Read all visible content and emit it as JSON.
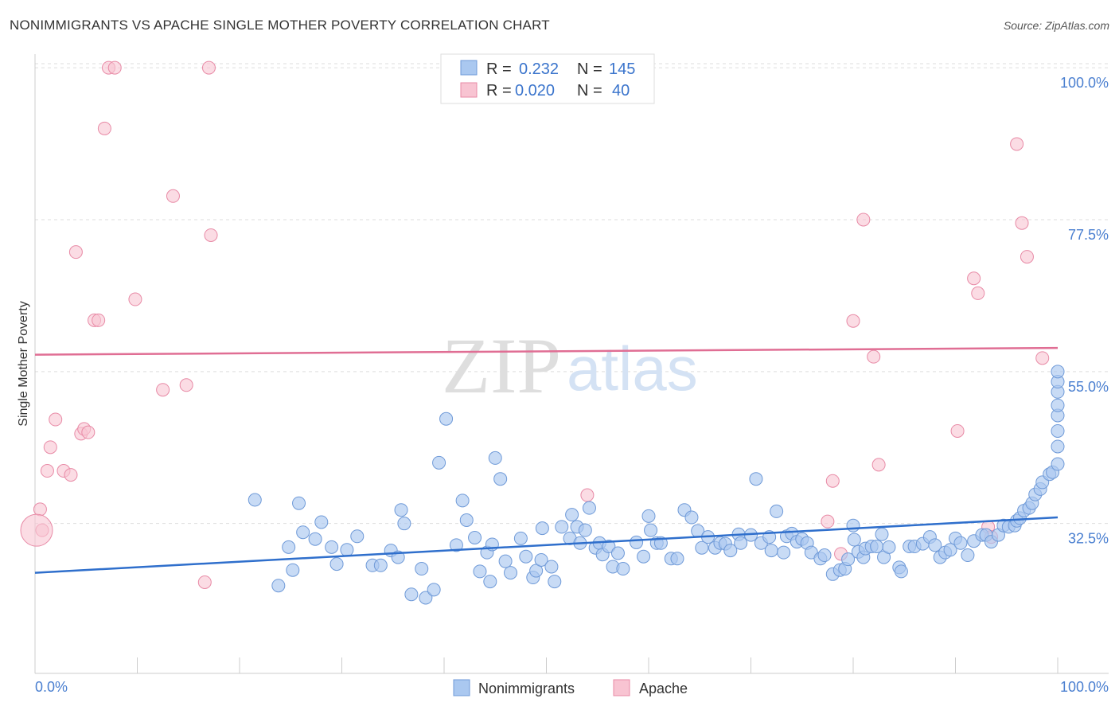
{
  "title": "NONIMMIGRANTS VS APACHE SINGLE MOTHER POVERTY CORRELATION CHART",
  "source": "Source: ZipAtlas.com",
  "watermark": {
    "zip": "ZIP",
    "atlas": "atlas"
  },
  "colors": {
    "blue_fill": "#aac8f0",
    "blue_stroke": "#6f9ad8",
    "blue_line": "#2f6fcc",
    "pink_fill": "#f8c4d2",
    "pink_stroke": "#e88aa6",
    "pink_line": "#e06e94",
    "tick": "#4a7fd0",
    "grid": "#dddddd"
  },
  "legend": {
    "rows": [
      {
        "r_label": "R =",
        "r_value": "0.232",
        "n_label": "N =",
        "n_value": "145",
        "series": "blue"
      },
      {
        "r_label": "R =",
        "r_value": "0.020",
        "n_label": "N =",
        "n_value": "40",
        "series": "pink"
      }
    ]
  },
  "chart_data": {
    "type": "scatter",
    "title": "NONIMMIGRANTS VS APACHE SINGLE MOTHER POVERTY CORRELATION CHART",
    "xlabel": "",
    "ylabel": "Single Mother Poverty",
    "x_tick_labels": [
      "0.0%",
      "100.0%"
    ],
    "y_tick_labels": [
      "32.5%",
      "55.0%",
      "77.5%",
      "100.0%"
    ],
    "y_ticks": [
      32.5,
      55.0,
      77.5,
      100.0
    ],
    "xlim": [
      0,
      100
    ],
    "ylim": [
      10.3,
      100.6
    ],
    "grid": true,
    "legend_placement": "bottom",
    "series": [
      {
        "name": "Nonimmigrants",
        "color": "#aac8f0",
        "trend": {
          "x": [
            0,
            100
          ],
          "y": [
            25.2,
            33.4
          ]
        },
        "points": [
          [
            21.5,
            36
          ],
          [
            23.8,
            23.3
          ],
          [
            24.8,
            29
          ],
          [
            25.2,
            25.6
          ],
          [
            25.8,
            35.5
          ],
          [
            26.2,
            31.2
          ],
          [
            27.4,
            30.2
          ],
          [
            28,
            32.7
          ],
          [
            29,
            29
          ],
          [
            29.5,
            26.5
          ],
          [
            30.5,
            28.6
          ],
          [
            31.5,
            30.6
          ],
          [
            33,
            26.3
          ],
          [
            33.8,
            26.3
          ],
          [
            34.8,
            28.5
          ],
          [
            35.5,
            27.5
          ],
          [
            35.8,
            34.5
          ],
          [
            36.1,
            32.5
          ],
          [
            36.8,
            22
          ],
          [
            37.8,
            25.8
          ],
          [
            38.2,
            21.5
          ],
          [
            39,
            22.7
          ],
          [
            39.5,
            41.5
          ],
          [
            40.2,
            48
          ],
          [
            41.2,
            29.3
          ],
          [
            41.8,
            35.9
          ],
          [
            42.2,
            33
          ],
          [
            43,
            30.4
          ],
          [
            43.5,
            25.4
          ],
          [
            44.2,
            28.2
          ],
          [
            44.5,
            23.9
          ],
          [
            44.7,
            29.4
          ],
          [
            45,
            42.2
          ],
          [
            45.5,
            39.1
          ],
          [
            46,
            26.9
          ],
          [
            46.5,
            25.2
          ],
          [
            47.5,
            30.3
          ],
          [
            48,
            27.6
          ],
          [
            48.7,
            24.5
          ],
          [
            49,
            25.5
          ],
          [
            49.6,
            31.8
          ],
          [
            49.5,
            27.1
          ],
          [
            50.5,
            26.1
          ],
          [
            50.8,
            23.9
          ],
          [
            51.5,
            32
          ],
          [
            52.3,
            30.3
          ],
          [
            52.5,
            33.8
          ],
          [
            53,
            32
          ],
          [
            53.3,
            29.6
          ],
          [
            53.8,
            31.5
          ],
          [
            54.2,
            34.8
          ],
          [
            54.8,
            28.9
          ],
          [
            55.2,
            29.6
          ],
          [
            55.5,
            27.9
          ],
          [
            56.1,
            29.1
          ],
          [
            56.5,
            26.1
          ],
          [
            57,
            28.1
          ],
          [
            57.5,
            25.8
          ],
          [
            58.8,
            29.7
          ],
          [
            59.5,
            27.6
          ],
          [
            60,
            33.6
          ],
          [
            60.2,
            31.5
          ],
          [
            60.8,
            29.6
          ],
          [
            61.2,
            29.6
          ],
          [
            62.2,
            27.3
          ],
          [
            62.8,
            27.3
          ],
          [
            63.5,
            34.5
          ],
          [
            64.2,
            33.4
          ],
          [
            64.8,
            31.4
          ],
          [
            65.2,
            28.9
          ],
          [
            65.8,
            30.5
          ],
          [
            66.5,
            28.9
          ],
          [
            67,
            29.6
          ],
          [
            67.5,
            29.5
          ],
          [
            68,
            28.5
          ],
          [
            68.8,
            30.9
          ],
          [
            69,
            29.6
          ],
          [
            70,
            30.8
          ],
          [
            70.5,
            39.1
          ],
          [
            71,
            29.6
          ],
          [
            71.8,
            30.5
          ],
          [
            72,
            28.5
          ],
          [
            72.5,
            34.3
          ],
          [
            73.2,
            28.2
          ],
          [
            73.5,
            30.6
          ],
          [
            74,
            31
          ],
          [
            74.5,
            29.8
          ],
          [
            75,
            30.2
          ],
          [
            75.5,
            29.6
          ],
          [
            75.9,
            28.2
          ],
          [
            76.8,
            27.3
          ],
          [
            77.2,
            27.8
          ],
          [
            78,
            25
          ],
          [
            78.7,
            25.6
          ],
          [
            79.2,
            25.8
          ],
          [
            79.5,
            27.2
          ],
          [
            80,
            32.2
          ],
          [
            80.1,
            30.1
          ],
          [
            80.5,
            28.3
          ],
          [
            81,
            27.5
          ],
          [
            81.2,
            28.8
          ],
          [
            81.8,
            29.1
          ],
          [
            82.3,
            29.1
          ],
          [
            82.8,
            30.9
          ],
          [
            83,
            27.5
          ],
          [
            83.5,
            29
          ],
          [
            84.5,
            26
          ],
          [
            84.7,
            25.4
          ],
          [
            85.5,
            29.1
          ],
          [
            86,
            29.1
          ],
          [
            86.8,
            29.5
          ],
          [
            87.5,
            30.5
          ],
          [
            88,
            29.3
          ],
          [
            88.5,
            27.5
          ],
          [
            89,
            28.2
          ],
          [
            89.5,
            28.6
          ],
          [
            90,
            30.3
          ],
          [
            90.5,
            29.6
          ],
          [
            91.2,
            27.8
          ],
          [
            91.8,
            29.9
          ],
          [
            92.6,
            30.8
          ],
          [
            93,
            30.8
          ],
          [
            93.5,
            29.8
          ],
          [
            94.2,
            30.8
          ],
          [
            94.7,
            32.2
          ],
          [
            95.2,
            32
          ],
          [
            95.8,
            32.2
          ],
          [
            96,
            32.9
          ],
          [
            96.3,
            33.3
          ],
          [
            96.7,
            34.4
          ],
          [
            97.2,
            34.8
          ],
          [
            97.5,
            35.5
          ],
          [
            97.8,
            36.8
          ],
          [
            98.3,
            37.6
          ],
          [
            98.5,
            38.6
          ],
          [
            99.2,
            39.8
          ],
          [
            99.5,
            40.1
          ],
          [
            100,
            41.3
          ],
          [
            100.5,
            43.9
          ],
          [
            101,
            46.2
          ],
          [
            101.5,
            48.5
          ],
          [
            102,
            50
          ],
          [
            102.5,
            52
          ],
          [
            103,
            53.5
          ],
          [
            103.5,
            55
          ]
        ]
      },
      {
        "name": "Apache",
        "color": "#f8c4d2",
        "trend": {
          "x": [
            0,
            100
          ],
          "y": [
            57.5,
            58.5
          ]
        },
        "points": [
          [
            0.5,
            34.6
          ],
          [
            0.7,
            31.5
          ],
          [
            1.2,
            40.3
          ],
          [
            1.5,
            43.8
          ],
          [
            2,
            47.9
          ],
          [
            2.8,
            40.3
          ],
          [
            3.5,
            39.7
          ],
          [
            4,
            72.7
          ],
          [
            4.5,
            45.8
          ],
          [
            4.8,
            46.5
          ],
          [
            5.2,
            46
          ],
          [
            5.8,
            62.6
          ],
          [
            6.2,
            62.6
          ],
          [
            6.8,
            91
          ],
          [
            7.2,
            100
          ],
          [
            7.8,
            100
          ],
          [
            9.8,
            65.7
          ],
          [
            12.5,
            52.3
          ],
          [
            13.5,
            81
          ],
          [
            14.8,
            53
          ],
          [
            16.6,
            23.8
          ],
          [
            17,
            100
          ],
          [
            17.2,
            75.2
          ],
          [
            54,
            36.7
          ],
          [
            78,
            38.8
          ],
          [
            77.5,
            32.8
          ],
          [
            78.8,
            28
          ],
          [
            80,
            62.5
          ],
          [
            81,
            77.5
          ],
          [
            82,
            57.2
          ],
          [
            82.5,
            41.2
          ],
          [
            90.2,
            46.2
          ],
          [
            91.8,
            68.8
          ],
          [
            92.2,
            66.6
          ],
          [
            93.2,
            32
          ],
          [
            93.5,
            30.5
          ],
          [
            96,
            88.7
          ],
          [
            96.5,
            77
          ],
          [
            97,
            72
          ],
          [
            98.5,
            57
          ]
        ]
      }
    ]
  }
}
